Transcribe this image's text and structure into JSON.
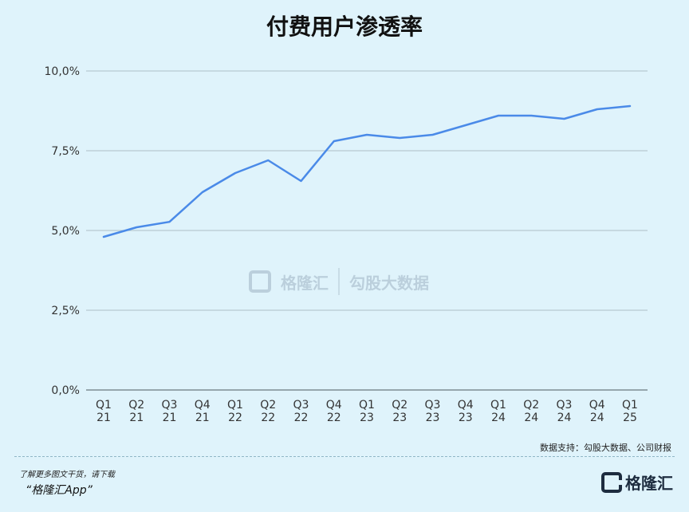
{
  "chart_data": {
    "type": "line",
    "title": "付费用户渗透率",
    "xlabel": "",
    "ylabel": "",
    "categories": [
      [
        "Q1",
        "21"
      ],
      [
        "Q2",
        "21"
      ],
      [
        "Q3",
        "21"
      ],
      [
        "Q4",
        "21"
      ],
      [
        "Q1",
        "22"
      ],
      [
        "Q2",
        "22"
      ],
      [
        "Q3",
        "22"
      ],
      [
        "Q4",
        "22"
      ],
      [
        "Q1",
        "23"
      ],
      [
        "Q2",
        "23"
      ],
      [
        "Q3",
        "23"
      ],
      [
        "Q4",
        "23"
      ],
      [
        "Q1",
        "24"
      ],
      [
        "Q2",
        "24"
      ],
      [
        "Q3",
        "24"
      ],
      [
        "Q4",
        "24"
      ],
      [
        "Q1",
        "25"
      ]
    ],
    "series": [
      {
        "values": [
          4.8,
          5.1,
          5.27,
          6.2,
          6.8,
          7.2,
          6.55,
          7.8,
          8.0,
          7.9,
          8.0,
          8.3,
          8.6,
          8.6,
          8.5,
          8.8,
          8.9
        ]
      }
    ],
    "ylim": [
      0,
      10
    ],
    "yticks": [
      0,
      2.5,
      5,
      7.5,
      10
    ],
    "ytick_labels": [
      "0,0%",
      "2,5%",
      "5,0%",
      "7,5%",
      "10,0%"
    ],
    "grid": true,
    "line_color": "#4a8ae8"
  },
  "source": "数据支持：勾股大数据、公司财报",
  "promo": {
    "line1": "了解更多图文干货，请下载",
    "line2": "“格隆汇App”"
  },
  "logo_text": "格隆汇",
  "watermark": {
    "left": "格隆汇",
    "right": "勾股大数据"
  }
}
